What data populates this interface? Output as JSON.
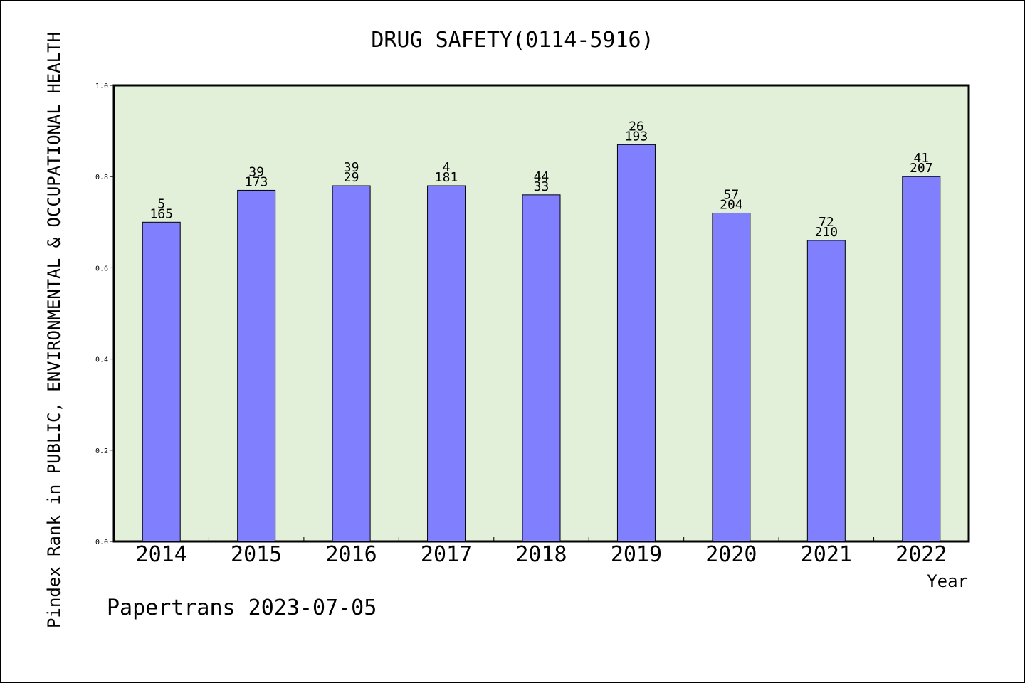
{
  "chart_data": {
    "type": "bar",
    "title": "DRUG SAFETY(0114-5916)",
    "xlabel": "Year",
    "ylabel": "Pindex Rank in PUBLIC, ENVIRONMENTAL & OCCUPATIONAL HEALTH",
    "categories": [
      "2014",
      "2015",
      "2016",
      "2017",
      "2018",
      "2019",
      "2020",
      "2021",
      "2022"
    ],
    "values": [
      0.7,
      0.77,
      0.78,
      0.78,
      0.76,
      0.87,
      0.72,
      0.66,
      0.8
    ],
    "labels_top": [
      "5",
      "39",
      "39",
      "4",
      "44",
      "26",
      "57",
      "72",
      "41"
    ],
    "labels_bottom": [
      "165",
      "173",
      "29",
      "181",
      "33",
      "193",
      "204",
      "210",
      "207"
    ],
    "ylim": [
      0.0,
      1.0
    ],
    "yticks": [
      "0.0",
      "0.2",
      "0.4",
      "0.6",
      "0.8",
      "1.0"
    ],
    "colors": {
      "plot_bg": "#e2f0d9",
      "bar": "#8080ff"
    },
    "grid": false,
    "legend": "none"
  },
  "footer": "Papertrans 2023-07-05"
}
